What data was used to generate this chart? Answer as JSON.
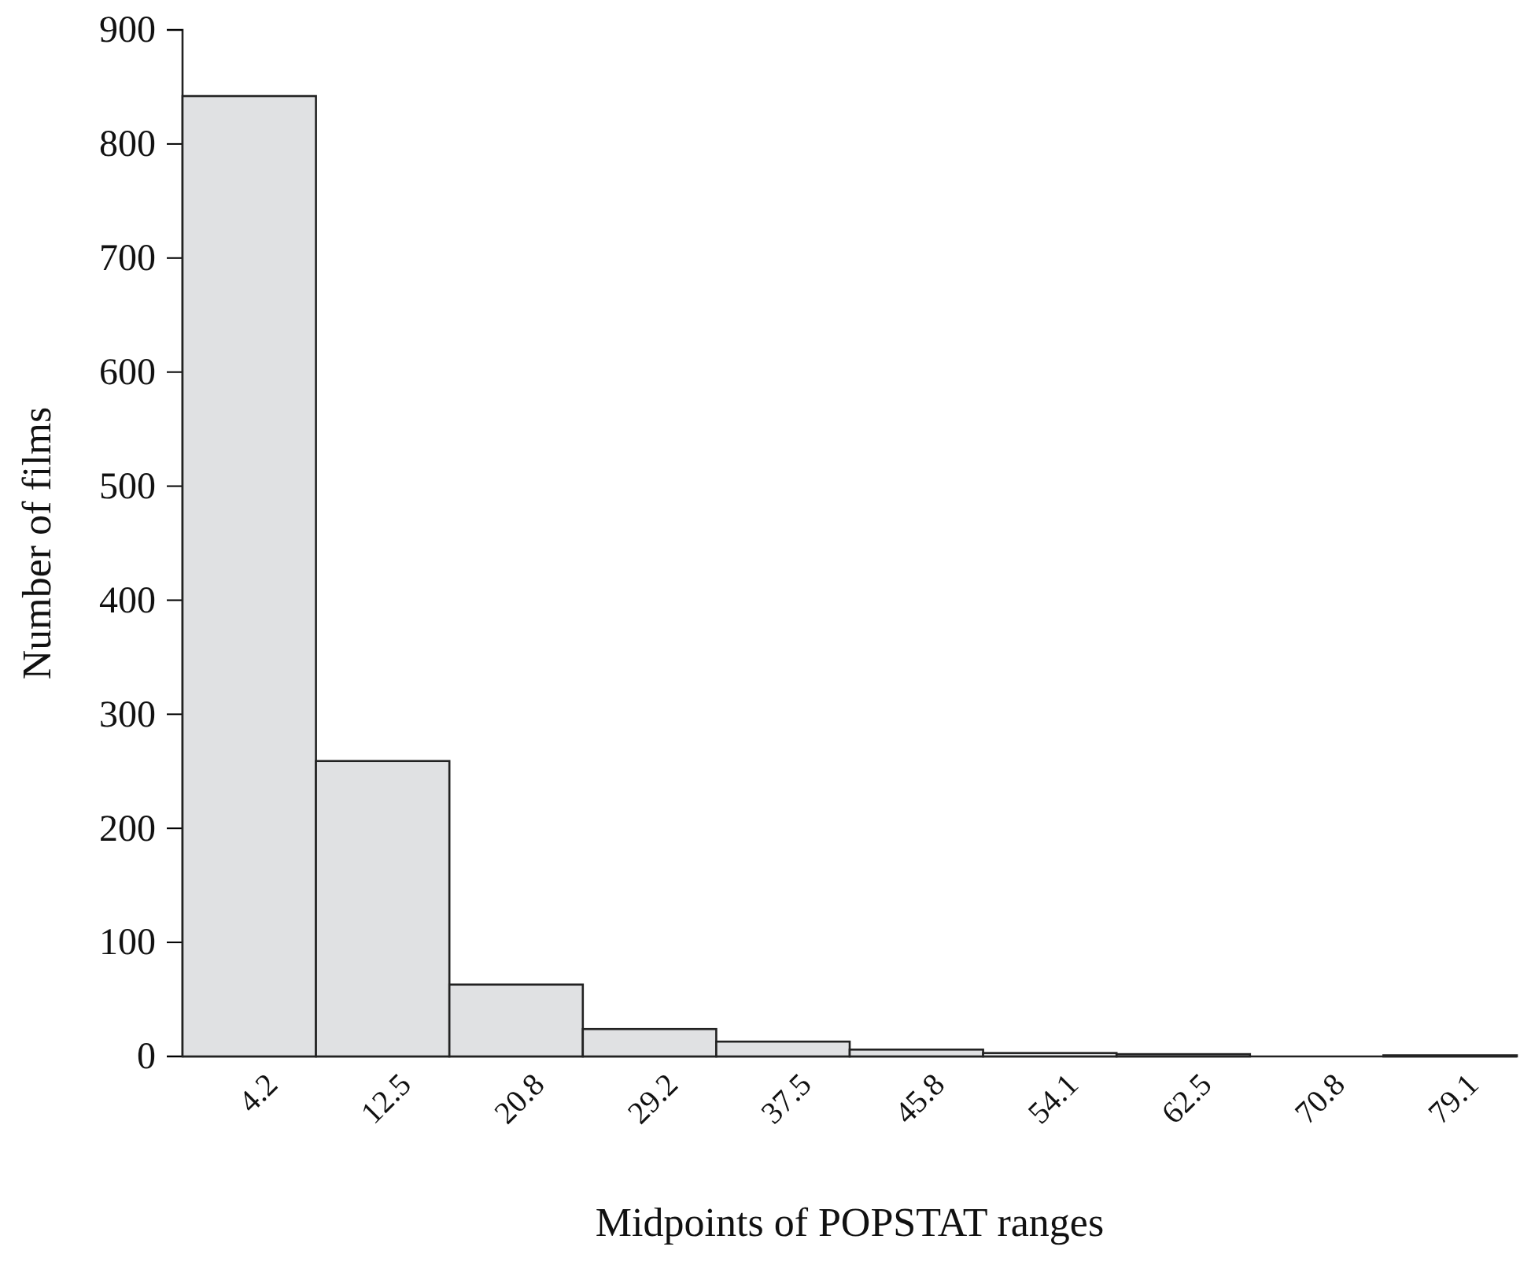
{
  "chart_data": {
    "type": "bar",
    "xlabel": "Midpoints of POPSTAT ranges",
    "ylabel": "Number of films",
    "categories": [
      "4.2",
      "12.5",
      "20.8",
      "29.2",
      "37.5",
      "45.8",
      "54.1",
      "62.5",
      "70.8",
      "79.1"
    ],
    "values": [
      842,
      259,
      63,
      24,
      13,
      6,
      3,
      2,
      0,
      1
    ],
    "color": "#e0e1e3",
    "ylim": [
      0,
      900
    ],
    "yticks": [
      0,
      100,
      200,
      300,
      400,
      500,
      600,
      700,
      800,
      900
    ]
  }
}
